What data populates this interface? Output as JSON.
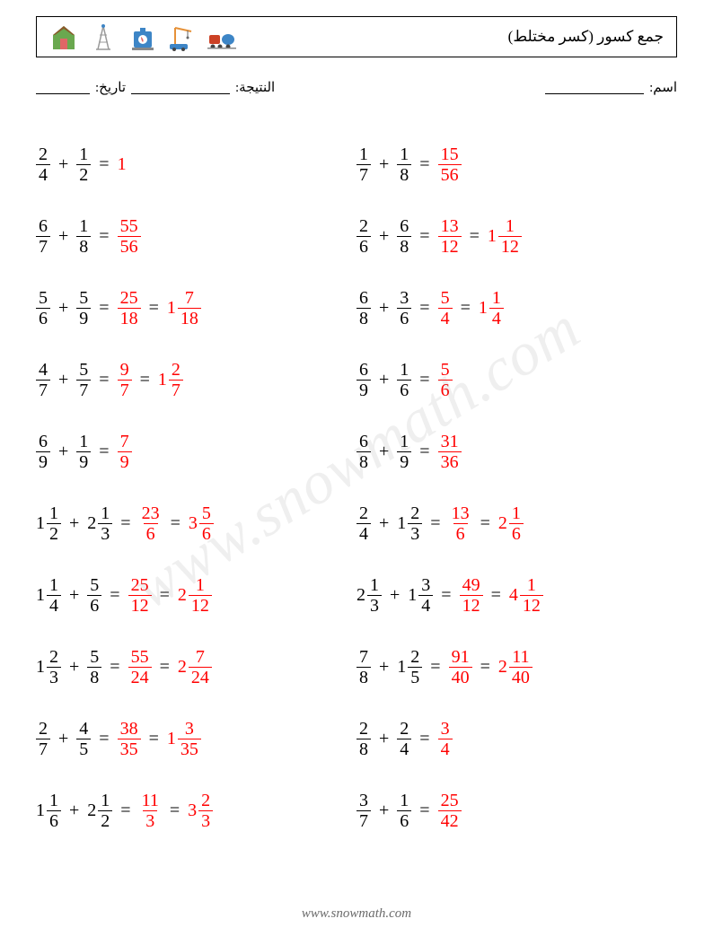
{
  "title": "جمع كسور (كسر مختلط)",
  "meta": {
    "name_label": "اسم:",
    "score_label": "النتيجة:",
    "date_label": "تاريخ:",
    "name_blank_width": 110,
    "score_blank_width": 110,
    "date_blank_width": 60
  },
  "colors": {
    "answer": "#ff0000",
    "text": "#000000",
    "watermark": "rgba(120,120,120,0.12)",
    "footer": "#6b6b6b"
  },
  "fontsize": {
    "title": 17,
    "meta": 15,
    "problem": 20
  },
  "watermark": "www.snowmath.com",
  "footer": "www.snowmath.com",
  "icons": [
    {
      "name": "barn-icon",
      "primary": "#6aa84f",
      "accent": "#e06666"
    },
    {
      "name": "tower-icon",
      "primary": "#3d85c6",
      "accent": "#999999"
    },
    {
      "name": "tank-icon",
      "primary": "#3d85c6",
      "accent": "#e06666"
    },
    {
      "name": "crane-icon",
      "primary": "#e69138",
      "accent": "#3d85c6"
    },
    {
      "name": "train-icon",
      "primary": "#cc4125",
      "accent": "#3d85c6"
    }
  ],
  "left": [
    {
      "a": {
        "n": 2,
        "d": 4
      },
      "b": {
        "n": 1,
        "d": 2
      },
      "r1": {
        "int": 1
      }
    },
    {
      "a": {
        "n": 6,
        "d": 7
      },
      "b": {
        "n": 1,
        "d": 8
      },
      "r1": {
        "n": 55,
        "d": 56
      }
    },
    {
      "a": {
        "n": 5,
        "d": 6
      },
      "b": {
        "n": 5,
        "d": 9
      },
      "r1": {
        "n": 25,
        "d": 18
      },
      "r2": {
        "w": 1,
        "n": 7,
        "d": 18
      }
    },
    {
      "a": {
        "n": 4,
        "d": 7
      },
      "b": {
        "n": 5,
        "d": 7
      },
      "r1": {
        "n": 9,
        "d": 7
      },
      "r2": {
        "w": 1,
        "n": 2,
        "d": 7
      }
    },
    {
      "a": {
        "n": 6,
        "d": 9
      },
      "b": {
        "n": 1,
        "d": 9
      },
      "r1": {
        "n": 7,
        "d": 9
      }
    },
    {
      "a": {
        "w": 1,
        "n": 1,
        "d": 2
      },
      "b": {
        "w": 2,
        "n": 1,
        "d": 3
      },
      "r1": {
        "n": 23,
        "d": 6
      },
      "r2": {
        "w": 3,
        "n": 5,
        "d": 6
      }
    },
    {
      "a": {
        "w": 1,
        "n": 1,
        "d": 4
      },
      "b": {
        "n": 5,
        "d": 6
      },
      "r1": {
        "n": 25,
        "d": 12
      },
      "r2": {
        "w": 2,
        "n": 1,
        "d": 12
      }
    },
    {
      "a": {
        "w": 1,
        "n": 2,
        "d": 3
      },
      "b": {
        "n": 5,
        "d": 8
      },
      "r1": {
        "n": 55,
        "d": 24
      },
      "r2": {
        "w": 2,
        "n": 7,
        "d": 24
      }
    },
    {
      "a": {
        "n": 2,
        "d": 7
      },
      "b": {
        "n": 4,
        "d": 5
      },
      "r1": {
        "n": 38,
        "d": 35
      },
      "r2": {
        "w": 1,
        "n": 3,
        "d": 35
      }
    },
    {
      "a": {
        "w": 1,
        "n": 1,
        "d": 6
      },
      "b": {
        "w": 2,
        "n": 1,
        "d": 2
      },
      "r1": {
        "n": 11,
        "d": 3
      },
      "r2": {
        "w": 3,
        "n": 2,
        "d": 3
      }
    }
  ],
  "right": [
    {
      "a": {
        "n": 1,
        "d": 7
      },
      "b": {
        "n": 1,
        "d": 8
      },
      "r1": {
        "n": 15,
        "d": 56
      }
    },
    {
      "a": {
        "n": 2,
        "d": 6
      },
      "b": {
        "n": 6,
        "d": 8
      },
      "r1": {
        "n": 13,
        "d": 12
      },
      "r2": {
        "w": 1,
        "n": 1,
        "d": 12
      }
    },
    {
      "a": {
        "n": 6,
        "d": 8
      },
      "b": {
        "n": 3,
        "d": 6
      },
      "r1": {
        "n": 5,
        "d": 4
      },
      "r2": {
        "w": 1,
        "n": 1,
        "d": 4
      }
    },
    {
      "a": {
        "n": 6,
        "d": 9
      },
      "b": {
        "n": 1,
        "d": 6
      },
      "r1": {
        "n": 5,
        "d": 6
      }
    },
    {
      "a": {
        "n": 6,
        "d": 8
      },
      "b": {
        "n": 1,
        "d": 9
      },
      "r1": {
        "n": 31,
        "d": 36
      }
    },
    {
      "a": {
        "n": 2,
        "d": 4
      },
      "b": {
        "w": 1,
        "n": 2,
        "d": 3
      },
      "r1": {
        "n": 13,
        "d": 6
      },
      "r2": {
        "w": 2,
        "n": 1,
        "d": 6
      }
    },
    {
      "a": {
        "w": 2,
        "n": 1,
        "d": 3
      },
      "b": {
        "w": 1,
        "n": 3,
        "d": 4
      },
      "r1": {
        "n": 49,
        "d": 12
      },
      "r2": {
        "w": 4,
        "n": 1,
        "d": 12
      }
    },
    {
      "a": {
        "n": 7,
        "d": 8
      },
      "b": {
        "w": 1,
        "n": 2,
        "d": 5
      },
      "r1": {
        "n": 91,
        "d": 40
      },
      "r2": {
        "w": 2,
        "n": 11,
        "d": 40
      }
    },
    {
      "a": {
        "n": 2,
        "d": 8
      },
      "b": {
        "n": 2,
        "d": 4
      },
      "r1": {
        "n": 3,
        "d": 4
      }
    },
    {
      "a": {
        "n": 3,
        "d": 7
      },
      "b": {
        "n": 1,
        "d": 6
      },
      "r1": {
        "n": 25,
        "d": 42
      }
    }
  ]
}
